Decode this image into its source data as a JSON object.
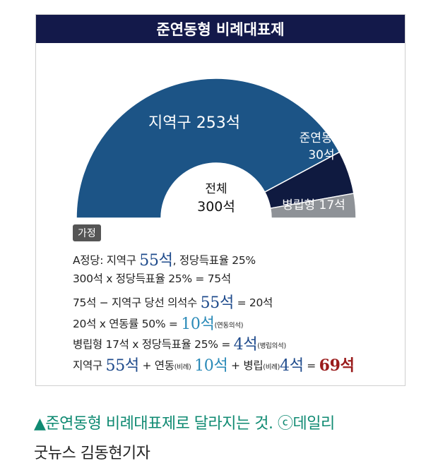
{
  "header": {
    "title": "준연동형 비례대표제"
  },
  "chart_data": {
    "type": "pie",
    "subtype": "half-donut",
    "total": 300,
    "center": {
      "label": "전체",
      "value": "300석"
    },
    "segments": [
      {
        "label": "지역구 253석",
        "value": 253,
        "color": "#1c5486"
      },
      {
        "label_line1": "준연동형",
        "label_line2": "30석",
        "value": 30,
        "color": "#0f1a40"
      },
      {
        "label": "병립형 17석",
        "value": 17,
        "color": "#8e9297"
      }
    ]
  },
  "assumption": {
    "badge": "가정",
    "lines": [
      {
        "parts": [
          "A정당: 지역구 ",
          "55석",
          ", 정당득표율 25%"
        ]
      },
      {
        "parts": [
          "300석 x 정당득표율 25% = 75석"
        ]
      },
      {
        "parts": [
          "75석 − 지역구 당선 의석수 ",
          "55석",
          " = 20석"
        ]
      },
      {
        "parts": [
          "20석 x 연동률 50% = ",
          "10석",
          "(연동의석)"
        ]
      },
      {
        "parts": [
          "병립형 17석 x 정당득표율 25% = ",
          "4석",
          "(병립의석)"
        ]
      },
      {
        "parts": [
          "지역구 ",
          "55석",
          " + 연동",
          "(비례)",
          " ",
          "10석",
          " + 병립",
          "(비례)",
          "4석",
          " = ",
          "69석"
        ]
      }
    ]
  },
  "caption": {
    "line1": "▲준연동형 비례대표제로 달라지는 것. ⓒ데일리",
    "line2": "굿뉴스 김동현기자"
  }
}
